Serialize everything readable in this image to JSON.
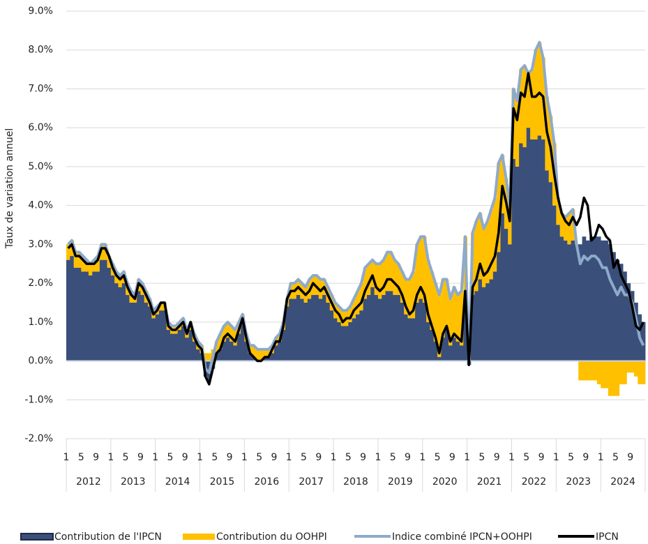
{
  "chart_data": {
    "type": "stacked-area-line",
    "y_label": "Taux de variation annuel",
    "ylim": [
      -2,
      9
    ],
    "yticks": [
      {
        "value": -2,
        "label": "-2.0%"
      },
      {
        "value": -1,
        "label": "-1.0%"
      },
      {
        "value": 0,
        "label": "0.0%"
      },
      {
        "value": 1,
        "label": "1.0%"
      },
      {
        "value": 2,
        "label": "2.0%"
      },
      {
        "value": 3,
        "label": "3.0%"
      },
      {
        "value": 4,
        "label": "4.0%"
      },
      {
        "value": 5,
        "label": "5.0%"
      },
      {
        "value": 6,
        "label": "6.0%"
      },
      {
        "value": 7,
        "label": "7.0%"
      },
      {
        "value": 8,
        "label": "8.0%"
      },
      {
        "value": 9,
        "label": "9.0%"
      }
    ],
    "grid": true,
    "years": [
      "2012",
      "2013",
      "2014",
      "2015",
      "2016",
      "2017",
      "2018",
      "2019",
      "2020",
      "2021",
      "2022",
      "2023",
      "2024"
    ],
    "categories": [
      "1",
      null,
      null,
      null,
      "5",
      null,
      null,
      null,
      "9",
      null,
      null,
      null,
      "1",
      null,
      null,
      null,
      "5",
      null,
      null,
      null,
      "9",
      null,
      null,
      null,
      "1",
      null,
      null,
      null,
      "5",
      null,
      null,
      null,
      "9",
      null,
      null,
      null,
      "1",
      null,
      null,
      null,
      "5",
      null,
      null,
      null,
      "9",
      null,
      null,
      null,
      "1",
      null,
      null,
      null,
      "5",
      null,
      null,
      null,
      "9",
      null,
      null,
      null,
      "1",
      null,
      null,
      null,
      "5",
      null,
      null,
      null,
      "9",
      null,
      null,
      null,
      "1",
      null,
      null,
      null,
      "5",
      null,
      null,
      null,
      "9",
      null,
      null,
      null,
      "1",
      null,
      null,
      null,
      "5",
      null,
      null,
      null,
      "9",
      null,
      null,
      null,
      "1",
      null,
      null,
      null,
      "5",
      null,
      null,
      null,
      "9",
      null,
      null,
      null,
      "1",
      null,
      null,
      null,
      "5",
      null,
      null,
      null,
      "9",
      null,
      null,
      null,
      "1",
      null,
      null,
      null,
      "5",
      null,
      null,
      null,
      "9",
      null,
      null,
      null,
      "1",
      null,
      null,
      null,
      "5",
      null,
      null,
      null,
      "9",
      null,
      null,
      null,
      "1",
      null,
      null,
      null,
      "5",
      null,
      null,
      null,
      "9",
      null,
      null,
      null
    ],
    "series": [
      {
        "name": "Contribution de l'IPCN",
        "kind": "area",
        "color": "#3a4f7a",
        "values": [
          2.6,
          2.7,
          2.4,
          2.4,
          2.3,
          2.3,
          2.2,
          2.3,
          2.3,
          2.6,
          2.6,
          2.4,
          2.2,
          2.0,
          1.9,
          2.0,
          1.7,
          1.5,
          1.5,
          1.8,
          1.7,
          1.5,
          1.4,
          1.1,
          1.2,
          1.3,
          1.3,
          0.8,
          0.7,
          0.7,
          0.8,
          0.9,
          0.6,
          0.8,
          0.5,
          0.3,
          0.2,
          -0.4,
          -0.5,
          -0.2,
          0.2,
          0.3,
          0.5,
          0.6,
          0.5,
          0.4,
          0.7,
          1.0,
          0.5,
          0.2,
          0.1,
          0.0,
          0.0,
          0.1,
          0.1,
          0.2,
          0.4,
          0.5,
          0.8,
          1.4,
          1.6,
          1.6,
          1.7,
          1.6,
          1.5,
          1.6,
          1.7,
          1.7,
          1.6,
          1.7,
          1.5,
          1.3,
          1.1,
          1.0,
          0.9,
          0.9,
          1.0,
          1.1,
          1.2,
          1.3,
          1.6,
          1.7,
          1.9,
          1.7,
          1.6,
          1.7,
          1.8,
          1.8,
          1.7,
          1.7,
          1.5,
          1.2,
          1.1,
          1.1,
          1.5,
          1.6,
          1.5,
          1.0,
          0.8,
          0.5,
          0.1,
          0.6,
          0.8,
          0.4,
          0.6,
          0.5,
          0.4,
          1.6,
          -0.1,
          1.7,
          1.8,
          2.1,
          1.9,
          2.0,
          2.1,
          2.3,
          2.8,
          3.8,
          3.4,
          3.0,
          5.2,
          5.0,
          5.6,
          5.5,
          6.0,
          5.7,
          5.7,
          5.8,
          5.7,
          4.9,
          4.6,
          4.0,
          3.5,
          3.2,
          3.1,
          3.0,
          3.1,
          3.0,
          3.0,
          3.2,
          3.1,
          3.2,
          3.2,
          3.2,
          3.1,
          3.1,
          3.0,
          2.8,
          2.6,
          2.5,
          2.3,
          2.0,
          1.8,
          1.5,
          1.2,
          1.0
        ]
      },
      {
        "name": "Contribution du OOHPI",
        "kind": "area",
        "color": "#ffc000",
        "values": [
          0.4,
          0.4,
          0.4,
          0.4,
          0.4,
          0.3,
          0.3,
          0.3,
          0.4,
          0.4,
          0.4,
          0.3,
          0.3,
          0.3,
          0.3,
          0.3,
          0.3,
          0.3,
          0.2,
          0.3,
          0.3,
          0.3,
          0.2,
          0.2,
          0.2,
          0.2,
          0.2,
          0.2,
          0.2,
          0.2,
          0.2,
          0.2,
          0.2,
          0.2,
          0.2,
          0.2,
          0.2,
          0.2,
          0.2,
          0.3,
          0.3,
          0.4,
          0.4,
          0.4,
          0.4,
          0.4,
          0.3,
          0.2,
          0.2,
          0.2,
          0.3,
          0.3,
          0.3,
          0.2,
          0.2,
          0.2,
          0.2,
          0.2,
          0.2,
          0.2,
          0.4,
          0.4,
          0.4,
          0.4,
          0.4,
          0.5,
          0.5,
          0.5,
          0.5,
          0.4,
          0.4,
          0.4,
          0.4,
          0.4,
          0.4,
          0.4,
          0.4,
          0.5,
          0.6,
          0.7,
          0.8,
          0.8,
          0.7,
          0.8,
          0.9,
          0.9,
          1.0,
          1.0,
          0.9,
          0.8,
          0.8,
          0.9,
          1.0,
          1.2,
          1.5,
          1.6,
          1.7,
          1.6,
          1.5,
          1.5,
          1.6,
          1.5,
          1.3,
          1.2,
          1.3,
          1.2,
          1.4,
          1.6,
          0.0,
          1.6,
          1.8,
          1.7,
          1.5,
          1.6,
          1.8,
          1.9,
          2.3,
          1.5,
          1.3,
          1.0,
          1.8,
          1.7,
          1.9,
          2.1,
          1.4,
          1.8,
          2.3,
          2.4,
          2.1,
          1.9,
          1.7,
          1.6,
          0.7,
          0.6,
          0.6,
          0.8,
          0.8,
          0.0,
          -0.5,
          -0.5,
          -0.5,
          -0.5,
          -0.5,
          -0.6,
          -0.7,
          -0.7,
          -0.9,
          -0.9,
          -0.9,
          -0.6,
          -0.6,
          -0.3,
          -0.3,
          -0.4,
          -0.6,
          -0.6
        ]
      },
      {
        "name": "Indice combiné IPCN+OOHPI",
        "kind": "line",
        "color": "#8eaacb",
        "values": [
          3.0,
          3.1,
          2.8,
          2.8,
          2.7,
          2.6,
          2.5,
          2.6,
          2.7,
          3.0,
          3.0,
          2.7,
          2.5,
          2.3,
          2.2,
          2.3,
          2.0,
          1.8,
          1.7,
          2.1,
          2.0,
          1.8,
          1.6,
          1.3,
          1.4,
          1.5,
          1.5,
          1.0,
          0.9,
          0.9,
          1.0,
          1.1,
          0.8,
          1.0,
          0.7,
          0.5,
          0.4,
          -0.2,
          -0.3,
          0.1,
          0.5,
          0.7,
          0.9,
          1.0,
          0.9,
          0.8,
          1.0,
          1.2,
          0.7,
          0.4,
          0.4,
          0.3,
          0.3,
          0.3,
          0.3,
          0.4,
          0.6,
          0.7,
          1.0,
          1.6,
          2.0,
          2.0,
          2.1,
          2.0,
          1.9,
          2.1,
          2.2,
          2.2,
          2.1,
          2.1,
          1.9,
          1.7,
          1.5,
          1.4,
          1.3,
          1.3,
          1.4,
          1.6,
          1.8,
          2.0,
          2.4,
          2.5,
          2.6,
          2.5,
          2.5,
          2.6,
          2.8,
          2.8,
          2.6,
          2.5,
          2.3,
          2.1,
          2.1,
          2.3,
          3.0,
          3.2,
          3.2,
          2.6,
          2.3,
          2.0,
          1.7,
          2.1,
          2.1,
          1.6,
          1.9,
          1.7,
          1.8,
          3.2,
          -0.1,
          3.3,
          3.6,
          3.8,
          3.4,
          3.6,
          3.9,
          4.2,
          5.1,
          5.3,
          4.7,
          4.0,
          7.0,
          6.7,
          7.5,
          7.6,
          7.4,
          7.5,
          8.0,
          8.2,
          7.8,
          6.8,
          6.3,
          5.6,
          4.2,
          3.8,
          3.7,
          3.8,
          3.9,
          3.0,
          2.5,
          2.7,
          2.6,
          2.7,
          2.7,
          2.6,
          2.4,
          2.4,
          2.1,
          1.9,
          1.7,
          1.9,
          1.7,
          1.7,
          1.5,
          1.1,
          0.6,
          0.4
        ]
      },
      {
        "name": "IPCN",
        "kind": "line",
        "color": "#000000",
        "values": [
          2.9,
          3.0,
          2.7,
          2.7,
          2.6,
          2.5,
          2.5,
          2.5,
          2.6,
          2.9,
          2.9,
          2.7,
          2.4,
          2.2,
          2.1,
          2.2,
          1.9,
          1.7,
          1.6,
          2.0,
          1.9,
          1.7,
          1.5,
          1.2,
          1.3,
          1.5,
          1.5,
          0.9,
          0.8,
          0.8,
          0.9,
          1.0,
          0.7,
          1.0,
          0.6,
          0.4,
          0.3,
          -0.4,
          -0.6,
          -0.2,
          0.2,
          0.3,
          0.6,
          0.7,
          0.6,
          0.5,
          0.8,
          1.1,
          0.6,
          0.2,
          0.1,
          0.0,
          0.0,
          0.1,
          0.1,
          0.3,
          0.5,
          0.5,
          0.9,
          1.6,
          1.8,
          1.8,
          1.9,
          1.8,
          1.7,
          1.8,
          2.0,
          1.9,
          1.8,
          1.9,
          1.7,
          1.5,
          1.3,
          1.2,
          1.0,
          1.1,
          1.1,
          1.3,
          1.4,
          1.5,
          1.8,
          2.0,
          2.2,
          1.9,
          1.8,
          1.9,
          2.1,
          2.1,
          2.0,
          1.9,
          1.7,
          1.4,
          1.2,
          1.3,
          1.7,
          1.9,
          1.7,
          1.2,
          0.9,
          0.6,
          0.2,
          0.7,
          0.9,
          0.5,
          0.7,
          0.6,
          0.5,
          1.8,
          -0.1,
          1.9,
          2.1,
          2.5,
          2.2,
          2.3,
          2.5,
          2.7,
          3.3,
          4.5,
          4.1,
          3.6,
          6.5,
          6.2,
          6.9,
          6.8,
          7.4,
          6.8,
          6.8,
          6.9,
          6.8,
          5.9,
          5.5,
          4.8,
          4.2,
          3.8,
          3.6,
          3.5,
          3.7,
          3.5,
          3.7,
          4.2,
          4.0,
          3.1,
          3.2,
          3.5,
          3.4,
          3.2,
          3.1,
          2.4,
          2.6,
          2.2,
          2.0,
          1.8,
          1.4,
          0.9,
          0.8,
          1.0
        ]
      }
    ]
  }
}
